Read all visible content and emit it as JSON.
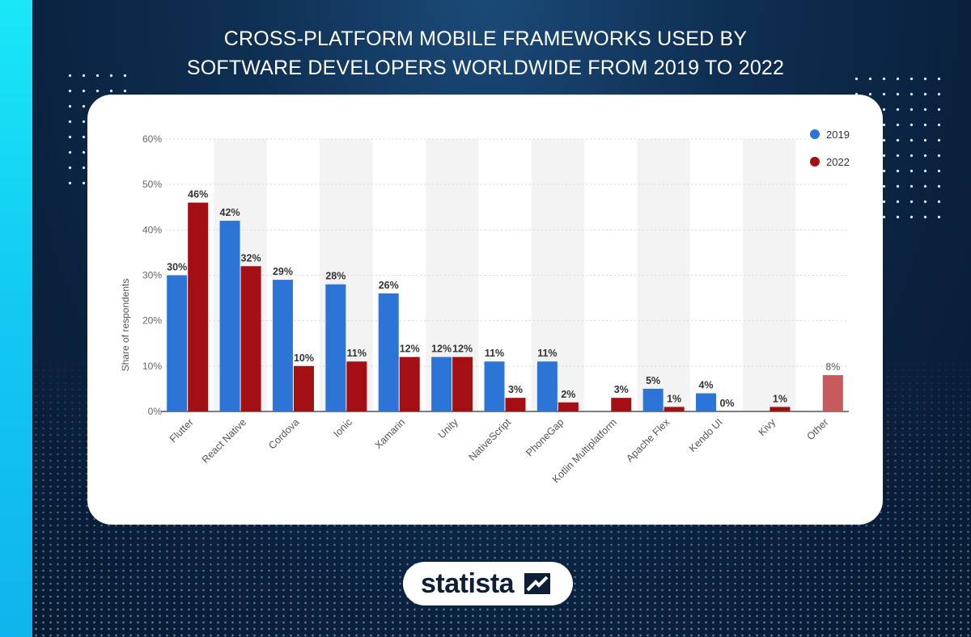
{
  "title_lines": [
    "CROSS-PLATFORM MOBILE FRAMEWORKS USED BY",
    "SOFTWARE DEVELOPERS WORLDWIDE FROM 2019 TO 2022"
  ],
  "brand": {
    "name": "statista",
    "icon": "statista-logo-icon"
  },
  "colors": {
    "series_2019": "#2c74d6",
    "series_2022": "#a30f13",
    "other_bar": "#c65a5c",
    "accent_strip": "#16d8f5",
    "background": "#0e2f52"
  },
  "chart_data": {
    "type": "bar",
    "categories": [
      "Flutter",
      "React Native",
      "Cordova",
      "Ionic",
      "Xamarin",
      "Unity",
      "NativeScript",
      "PhoneGap",
      "Kotlin Multiplatform",
      "Apache Flex",
      "Kendo UI",
      "Kivy",
      "Other"
    ],
    "series": [
      {
        "name": "2019",
        "values": [
          30,
          42,
          29,
          28,
          26,
          12,
          11,
          11,
          null,
          5,
          4,
          null,
          null
        ],
        "labels": [
          "30%",
          "42%",
          "29%",
          "28%",
          "26%",
          "12%",
          "11%",
          "11%",
          null,
          "5%",
          "4%",
          null,
          null
        ]
      },
      {
        "name": "2022",
        "values": [
          46,
          32,
          10,
          11,
          12,
          12,
          3,
          2,
          3,
          1,
          0,
          1,
          8
        ],
        "labels": [
          "46%",
          "32%",
          "10%",
          "11%",
          "12%",
          "12%",
          "3%",
          "2%",
          "3%",
          "1%",
          "0%",
          "1%",
          "8%"
        ]
      }
    ],
    "ylabel": "Share of respondents",
    "xlabel": "",
    "ylim": [
      0,
      60
    ],
    "yticks": [
      0,
      10,
      20,
      30,
      40,
      50,
      60
    ],
    "ytick_labels": [
      "0%",
      "10%",
      "20%",
      "30%",
      "40%",
      "50%",
      "60%"
    ],
    "legend_position": "top-right",
    "grid": true
  }
}
